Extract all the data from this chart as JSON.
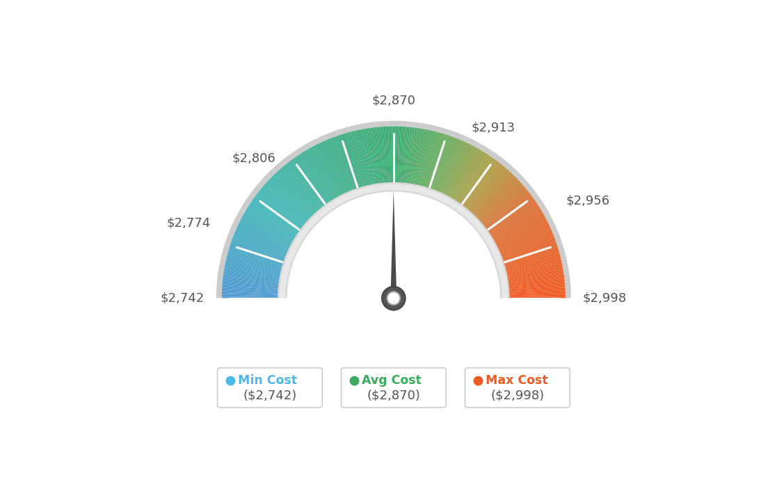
{
  "min_val": 2742,
  "avg_val": 2870,
  "max_val": 2998,
  "legend": [
    {
      "label": "Min Cost",
      "value": "($2,742)",
      "color": "#4db8e8"
    },
    {
      "label": "Avg Cost",
      "value": "($2,870)",
      "color": "#3aaa5c"
    },
    {
      "label": "Max Cost",
      "value": "($2,998)",
      "color": "#f05a22"
    }
  ],
  "background_color": "#ffffff",
  "needle_value": 2870,
  "color_stops": [
    [
      0.0,
      [
        0.31,
        0.6,
        0.82
      ]
    ],
    [
      0.2,
      [
        0.27,
        0.72,
        0.72
      ]
    ],
    [
      0.42,
      [
        0.25,
        0.68,
        0.5
      ]
    ],
    [
      0.5,
      [
        0.24,
        0.67,
        0.45
      ]
    ],
    [
      0.6,
      [
        0.42,
        0.68,
        0.38
      ]
    ],
    [
      0.7,
      [
        0.68,
        0.62,
        0.28
      ]
    ],
    [
      0.8,
      [
        0.85,
        0.45,
        0.22
      ]
    ],
    [
      1.0,
      [
        0.95,
        0.35,
        0.13
      ]
    ]
  ],
  "tick_positions": [
    0,
    1,
    2,
    3,
    4,
    5,
    6,
    7,
    8,
    9,
    10
  ],
  "label_data": [
    [
      2742,
      "$2,742"
    ],
    [
      2774,
      "$2,774"
    ],
    [
      2806,
      "$2,806"
    ],
    [
      2870,
      "$2,870"
    ],
    [
      2913,
      "$2,913"
    ],
    [
      2956,
      "$2,956"
    ],
    [
      2998,
      "$2,998"
    ]
  ]
}
